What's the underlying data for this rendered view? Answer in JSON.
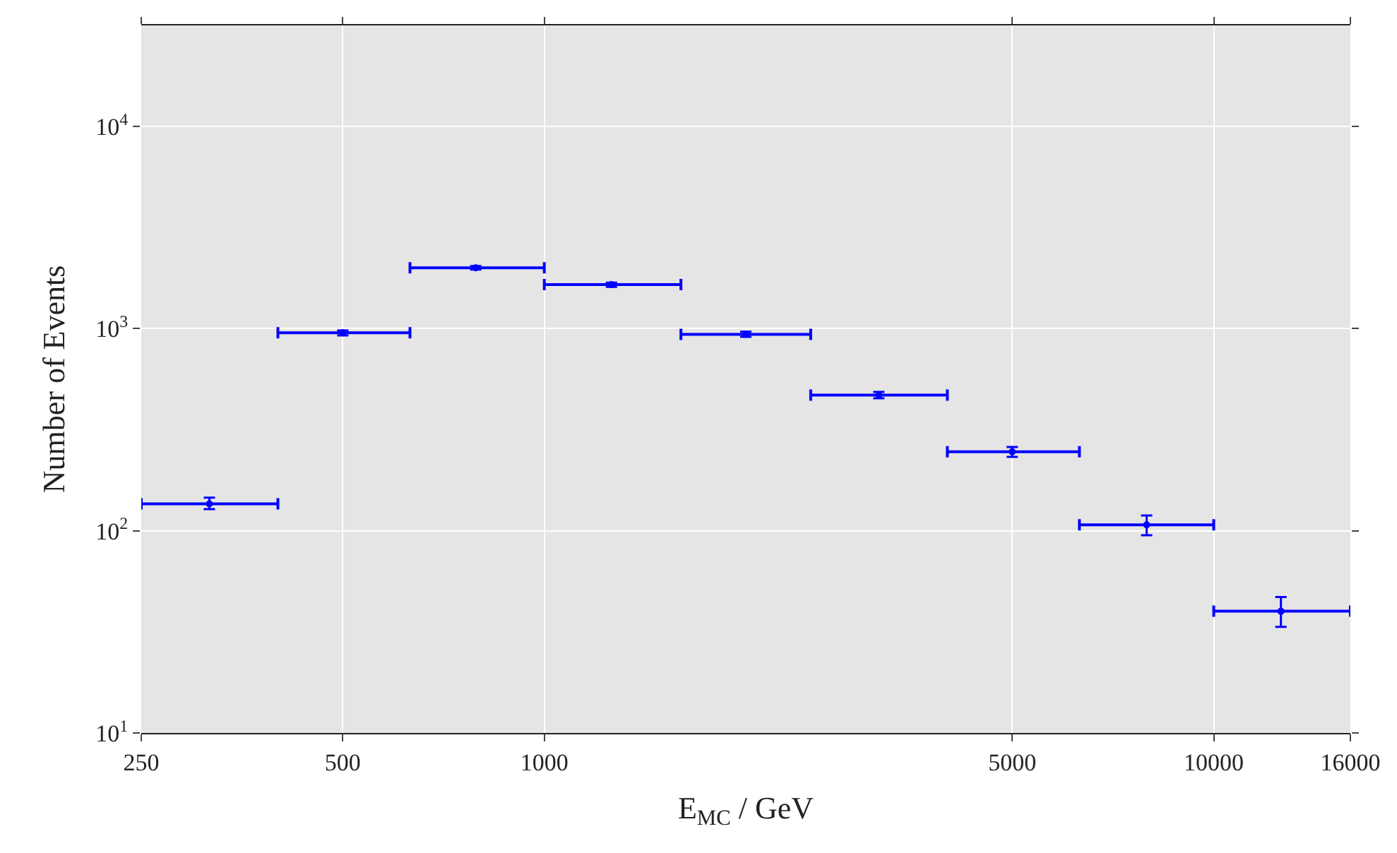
{
  "chart_data": {
    "type": "scatter",
    "xlabel": "E$_{MC}$ / GeV",
    "ylabel": "Number of Events",
    "x": [
      316,
      500,
      790,
      1260,
      2000,
      3160,
      5000,
      7940,
      12600
    ],
    "series": [
      {
        "color": "#0000ff",
        "values": [
          136,
          953,
          2000,
          1650,
          937,
          469,
          246,
          107,
          40
        ],
        "errors": [
          [
            128,
            146
          ],
          [
            925,
            980
          ],
          [
            1960,
            2040
          ],
          [
            1610,
            1690
          ],
          [
            910,
            965
          ],
          [
            452,
            486
          ],
          [
            232,
            260
          ],
          [
            95,
            119
          ],
          [
            33.5,
            47
          ]
        ],
        "xerrors": [
          [
            250,
            400
          ],
          [
            400,
            630
          ],
          [
            630,
            1000
          ],
          [
            1000,
            1600
          ],
          [
            1600,
            2500
          ],
          [
            2500,
            4000
          ],
          [
            4000,
            6300
          ],
          [
            6300,
            10000
          ],
          [
            10000,
            16000
          ]
        ]
      }
    ],
    "log": "xy",
    "xlim": [
      250,
      16000
    ],
    "ylim": [
      10,
      31600
    ],
    "xticks": [
      250,
      500,
      1000,
      5000,
      10000,
      16000
    ],
    "yticks": [
      {
        "value": 10,
        "label": "10$^{1}$"
      },
      {
        "value": 100,
        "label": "10$^{2}$"
      },
      {
        "value": 1000,
        "label": "10$^{3}$"
      },
      {
        "value": 10000,
        "label": "10$^{4}$"
      }
    ],
    "grid": true,
    "marker": "circle"
  }
}
